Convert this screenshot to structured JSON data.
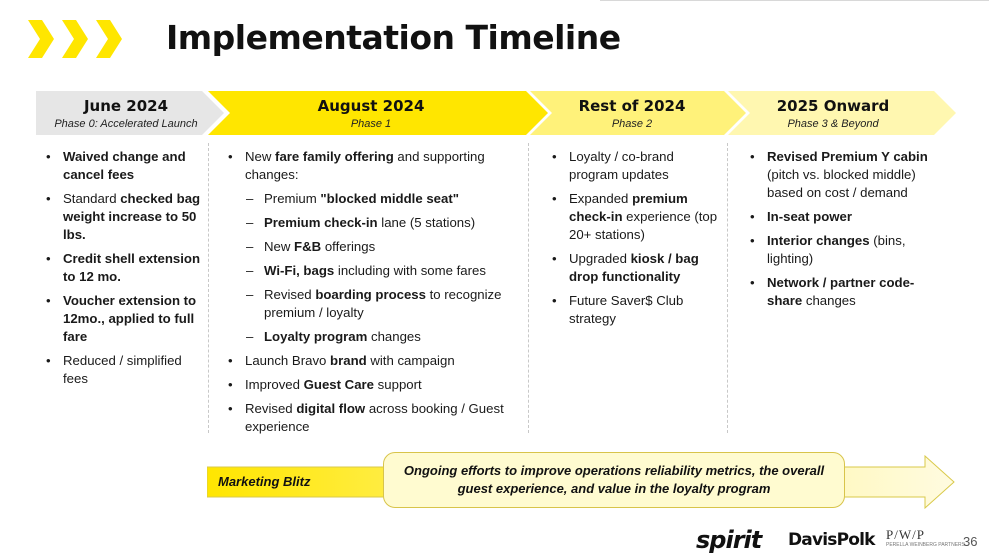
{
  "page": {
    "title": "Implementation Timeline",
    "page_number": "36"
  },
  "colors": {
    "brand_yellow": "#ffe600",
    "light_yellow": "#fff27a",
    "pale_yellow": "#fff7b0",
    "gray_phase": "#e6e6e6"
  },
  "phases": [
    {
      "name": "June 2024",
      "subtitle": "Phase 0: Accelerated Launch"
    },
    {
      "name": "August 2024",
      "subtitle": "Phase 1"
    },
    {
      "name": "Rest of 2024",
      "subtitle": "Phase 2"
    },
    {
      "name": "2025 Onward",
      "subtitle": "Phase 3 & Beyond"
    }
  ],
  "columns": [
    {
      "items": [
        {
          "level": 1,
          "parts": [
            {
              "t": "Waived change and cancel fees",
              "b": true
            }
          ]
        },
        {
          "level": 1,
          "parts": [
            {
              "t": "Standard ",
              "b": false
            },
            {
              "t": "checked bag weight increase to 50 lbs.",
              "b": true
            }
          ]
        },
        {
          "level": 1,
          "parts": [
            {
              "t": "Credit shell extension to 12 mo.",
              "b": true
            }
          ]
        },
        {
          "level": 1,
          "parts": [
            {
              "t": "Voucher extension to 12mo., applied to full fare",
              "b": true
            }
          ]
        },
        {
          "level": 1,
          "parts": [
            {
              "t": "Reduced / simplified fees",
              "b": false
            }
          ]
        }
      ]
    },
    {
      "items": [
        {
          "level": 1,
          "parts": [
            {
              "t": "New ",
              "b": false
            },
            {
              "t": "fare family offering",
              "b": true
            },
            {
              "t": " and supporting changes:",
              "b": false
            }
          ]
        },
        {
          "level": 2,
          "parts": [
            {
              "t": "Premium ",
              "b": false
            },
            {
              "t": "\"blocked middle seat\"",
              "b": true
            }
          ]
        },
        {
          "level": 2,
          "parts": [
            {
              "t": "Premium check-in",
              "b": true
            },
            {
              "t": " lane (5 stations)",
              "b": false
            }
          ]
        },
        {
          "level": 2,
          "parts": [
            {
              "t": "New ",
              "b": false
            },
            {
              "t": "F&B",
              "b": true
            },
            {
              "t": " offerings",
              "b": false
            }
          ]
        },
        {
          "level": 2,
          "parts": [
            {
              "t": "Wi-Fi, bags",
              "b": true
            },
            {
              "t": " including with some fares",
              "b": false
            }
          ]
        },
        {
          "level": 2,
          "parts": [
            {
              "t": "Revised ",
              "b": false
            },
            {
              "t": "boarding process",
              "b": true
            },
            {
              "t": " to recognize premium / loyalty",
              "b": false
            }
          ]
        },
        {
          "level": 2,
          "parts": [
            {
              "t": "Loyalty program",
              "b": true
            },
            {
              "t": " changes",
              "b": false
            }
          ]
        },
        {
          "level": 1,
          "parts": [
            {
              "t": "Launch Bravo ",
              "b": false
            },
            {
              "t": "brand",
              "b": true
            },
            {
              "t": " with campaign",
              "b": false
            }
          ]
        },
        {
          "level": 1,
          "parts": [
            {
              "t": "Improved ",
              "b": false
            },
            {
              "t": "Guest Care",
              "b": true
            },
            {
              "t": " support",
              "b": false
            }
          ]
        },
        {
          "level": 1,
          "parts": [
            {
              "t": "Revised ",
              "b": false
            },
            {
              "t": "digital flow",
              "b": true
            },
            {
              "t": " across booking / Guest experience",
              "b": false
            }
          ]
        }
      ]
    },
    {
      "items": [
        {
          "level": 1,
          "parts": [
            {
              "t": "Loyalty / co-brand program updates",
              "b": false
            }
          ]
        },
        {
          "level": 1,
          "parts": [
            {
              "t": "Expanded ",
              "b": false
            },
            {
              "t": "premium check-in",
              "b": true
            },
            {
              "t": " experience (top 20+ stations)",
              "b": false
            }
          ]
        },
        {
          "level": 1,
          "parts": [
            {
              "t": "Upgraded ",
              "b": false
            },
            {
              "t": "kiosk / bag drop functionality",
              "b": true
            }
          ]
        },
        {
          "level": 1,
          "parts": [
            {
              "t": "Future Saver$ Club strategy",
              "b": false
            }
          ]
        }
      ]
    },
    {
      "items": [
        {
          "level": 1,
          "parts": [
            {
              "t": "Revised Premium Y cabin",
              "b": true
            },
            {
              "t": " (pitch vs. blocked middle) based on cost / demand",
              "b": false
            }
          ]
        },
        {
          "level": 1,
          "parts": [
            {
              "t": "In-seat power",
              "b": true
            }
          ]
        },
        {
          "level": 1,
          "parts": [
            {
              "t": "Interior changes",
              "b": true
            },
            {
              "t": " (bins, lighting)",
              "b": false
            }
          ]
        },
        {
          "level": 1,
          "parts": [
            {
              "t": "Network / partner code-share",
              "b": true
            },
            {
              "t": " changes",
              "b": false
            }
          ]
        }
      ]
    }
  ],
  "blitz": {
    "label": "Marketing Blitz",
    "callout": "Ongoing efforts to improve operations reliability metrics, the overall guest experience, and value in the loyalty program"
  },
  "footer": {
    "logo_spirit": "spirit",
    "logo_davispolk": "DavisPolk",
    "logo_pwp": "P/W/P",
    "logo_pwp_sub": "PERELLA WEINBERG PARTNERS"
  }
}
